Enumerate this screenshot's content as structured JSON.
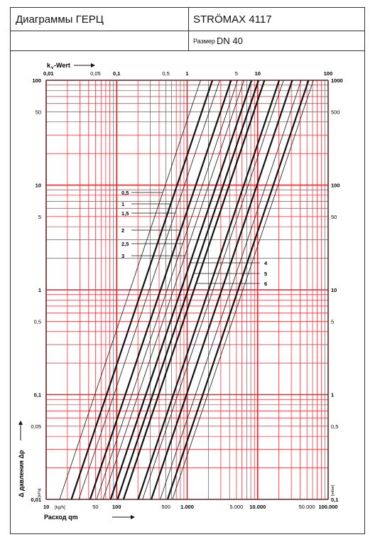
{
  "header": {
    "title": "Диаграммы ГЕРЦ",
    "product": "STRÖMAX 4117",
    "size_label": "Размер",
    "size_value": "DN 40"
  },
  "chart_data": {
    "type": "line",
    "x_scale": "log",
    "y_scale": "log",
    "xlabel": "Расход qm",
    "xunit": "[kg/h]",
    "xlim": [
      10,
      100000
    ],
    "xticks": [
      "10",
      "50",
      "100",
      "500",
      "1.000",
      "5.000",
      "10.000",
      "50.000",
      "100.000"
    ],
    "top_axis_label": "kv-Wert",
    "top_axis_label_main": "k",
    "top_axis_label_sub": "v",
    "top_axis_label_rest": "-Wert",
    "top_ticks": [
      "0,01",
      "0,05",
      "0,1",
      "0,5",
      "1",
      "5",
      "10",
      "100"
    ],
    "ylabel": "Δ давления Δp",
    "yunit_left": "[kPa]",
    "yunit_right": "[mbar]",
    "ylim": [
      0.01,
      100
    ],
    "yticks_left": [
      "100",
      "50",
      "10",
      "5",
      "1",
      "0,5",
      "0,1",
      "0,05",
      "0,01"
    ],
    "yticks_right": [
      "1000",
      "500",
      "100",
      "50",
      "10",
      "5",
      "1",
      "0,5",
      "0,1"
    ],
    "grid": true,
    "series": [
      {
        "name": "0,5",
        "qm_at_1kPa": 155,
        "heavy": false
      },
      {
        "name": "1",
        "qm_at_1kPa": 228,
        "heavy": true
      },
      {
        "name": "1,5",
        "qm_at_1kPa": 290,
        "heavy": false
      },
      {
        "name": "2",
        "qm_at_1kPa": 420,
        "heavy": true
      },
      {
        "name": "2,5",
        "qm_at_1kPa": 520,
        "heavy": false
      },
      {
        "name": "3",
        "qm_at_1kPa": 640,
        "heavy": false
      },
      {
        "name": "4",
        "qm_at_1kPa": 820,
        "heavy": true
      },
      {
        "name": "5",
        "qm_at_1kPa": 1030,
        "heavy": true
      },
      {
        "name": "6",
        "qm_at_1kPa": 1250,
        "heavy": true
      }
    ],
    "unlabeled_lines_qm_at_1kPa": [
      2020,
      2330,
      3100,
      4150,
      5280,
      6180
    ]
  }
}
